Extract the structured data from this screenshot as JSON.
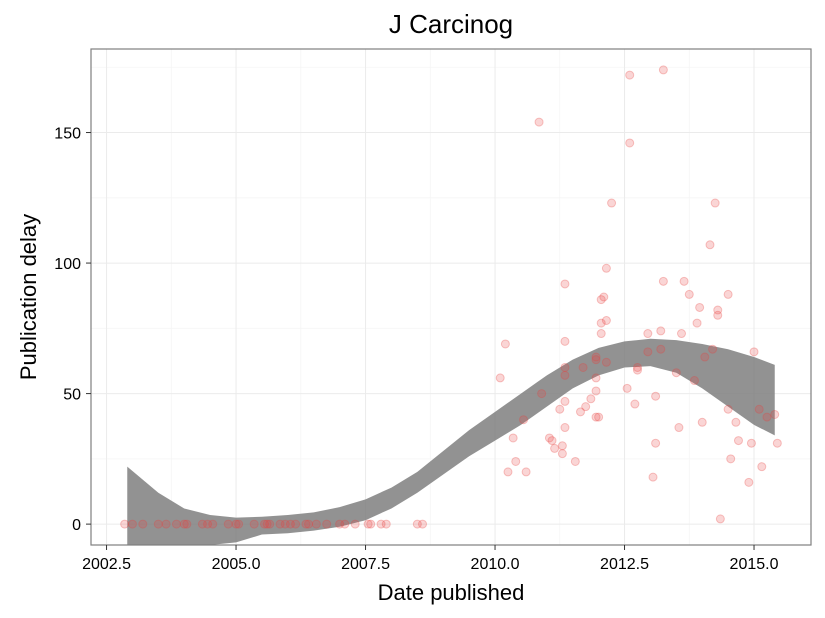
{
  "chart_data": {
    "type": "scatter",
    "title": "J Carcinog",
    "xlabel": "Date published",
    "ylabel": "Publication delay",
    "xlim": [
      2002.2,
      2016.1
    ],
    "ylim": [
      -8,
      182
    ],
    "x_ticks": [
      2002.5,
      2005.0,
      2007.5,
      2010.0,
      2012.5,
      2015.0
    ],
    "x_tick_labels": [
      "2002.5",
      "2005.0",
      "2007.5",
      "2010.0",
      "2012.5",
      "2015.0"
    ],
    "y_ticks": [
      0,
      50,
      100,
      150
    ],
    "y_tick_labels": [
      "0",
      "50",
      "100",
      "150"
    ],
    "grid": true,
    "point_color": "#e8413e",
    "band_color": "#7f7f7f",
    "points": [
      [
        2002.85,
        0
      ],
      [
        2003.0,
        0
      ],
      [
        2003.2,
        0
      ],
      [
        2003.5,
        0
      ],
      [
        2003.65,
        0
      ],
      [
        2003.85,
        0
      ],
      [
        2004.0,
        0
      ],
      [
        2004.05,
        0
      ],
      [
        2004.35,
        0
      ],
      [
        2004.45,
        0
      ],
      [
        2004.55,
        0
      ],
      [
        2004.85,
        0
      ],
      [
        2005.0,
        0
      ],
      [
        2005.05,
        0
      ],
      [
        2005.35,
        0
      ],
      [
        2005.55,
        0
      ],
      [
        2005.6,
        0
      ],
      [
        2005.65,
        0
      ],
      [
        2005.85,
        0
      ],
      [
        2005.95,
        0
      ],
      [
        2006.05,
        0
      ],
      [
        2006.15,
        0
      ],
      [
        2006.35,
        0
      ],
      [
        2006.4,
        0
      ],
      [
        2006.55,
        0
      ],
      [
        2006.75,
        0
      ],
      [
        2007.0,
        0
      ],
      [
        2007.1,
        0
      ],
      [
        2007.3,
        0
      ],
      [
        2007.55,
        0
      ],
      [
        2007.6,
        0
      ],
      [
        2007.8,
        0
      ],
      [
        2007.9,
        0
      ],
      [
        2008.5,
        0
      ],
      [
        2008.6,
        0
      ],
      [
        2010.1,
        56
      ],
      [
        2010.2,
        69
      ],
      [
        2010.25,
        20
      ],
      [
        2010.35,
        33
      ],
      [
        2010.4,
        24
      ],
      [
        2010.55,
        40
      ],
      [
        2010.6,
        20
      ],
      [
        2010.85,
        154
      ],
      [
        2010.9,
        50
      ],
      [
        2011.05,
        33
      ],
      [
        2011.1,
        32
      ],
      [
        2011.15,
        29
      ],
      [
        2011.25,
        44
      ],
      [
        2011.3,
        27
      ],
      [
        2011.3,
        30
      ],
      [
        2011.35,
        37
      ],
      [
        2011.35,
        47
      ],
      [
        2011.35,
        57
      ],
      [
        2011.35,
        60
      ],
      [
        2011.35,
        70
      ],
      [
        2011.35,
        92
      ],
      [
        2011.55,
        24
      ],
      [
        2011.65,
        43
      ],
      [
        2011.7,
        60
      ],
      [
        2011.75,
        45
      ],
      [
        2011.85,
        48
      ],
      [
        2011.95,
        41
      ],
      [
        2011.95,
        51
      ],
      [
        2011.95,
        56
      ],
      [
        2011.95,
        63
      ],
      [
        2011.95,
        64
      ],
      [
        2012.0,
        41
      ],
      [
        2012.05,
        73
      ],
      [
        2012.05,
        77
      ],
      [
        2012.05,
        86
      ],
      [
        2012.1,
        87
      ],
      [
        2012.15,
        62
      ],
      [
        2012.15,
        78
      ],
      [
        2012.15,
        98
      ],
      [
        2012.25,
        123
      ],
      [
        2012.55,
        52
      ],
      [
        2012.6,
        146
      ],
      [
        2012.6,
        172
      ],
      [
        2012.7,
        46
      ],
      [
        2012.75,
        59
      ],
      [
        2012.75,
        60
      ],
      [
        2012.95,
        73
      ],
      [
        2012.95,
        66
      ],
      [
        2013.05,
        18
      ],
      [
        2013.1,
        49
      ],
      [
        2013.1,
        31
      ],
      [
        2013.2,
        67
      ],
      [
        2013.2,
        74
      ],
      [
        2013.25,
        93
      ],
      [
        2013.25,
        174
      ],
      [
        2013.5,
        58
      ],
      [
        2013.55,
        37
      ],
      [
        2013.6,
        73
      ],
      [
        2013.65,
        93
      ],
      [
        2013.75,
        88
      ],
      [
        2013.85,
        55
      ],
      [
        2013.9,
        77
      ],
      [
        2013.95,
        83
      ],
      [
        2014.0,
        39
      ],
      [
        2014.05,
        64
      ],
      [
        2014.15,
        107
      ],
      [
        2014.2,
        67
      ],
      [
        2014.25,
        123
      ],
      [
        2014.3,
        82
      ],
      [
        2014.3,
        80
      ],
      [
        2014.35,
        2
      ],
      [
        2014.5,
        44
      ],
      [
        2014.5,
        88
      ],
      [
        2014.55,
        25
      ],
      [
        2014.65,
        39
      ],
      [
        2014.7,
        32
      ],
      [
        2014.9,
        16
      ],
      [
        2014.95,
        31
      ],
      [
        2015.0,
        66
      ],
      [
        2015.1,
        44
      ],
      [
        2015.15,
        22
      ],
      [
        2015.25,
        41
      ],
      [
        2015.4,
        42
      ],
      [
        2015.45,
        31
      ]
    ],
    "band_upper": [
      [
        2002.9,
        22
      ],
      [
        2003.5,
        12
      ],
      [
        2004.0,
        6
      ],
      [
        2004.5,
        3.5
      ],
      [
        2005.0,
        2.5
      ],
      [
        2005.5,
        2.8
      ],
      [
        2006.0,
        3.5
      ],
      [
        2006.5,
        4.5
      ],
      [
        2007.0,
        6.5
      ],
      [
        2007.5,
        9.5
      ],
      [
        2008.0,
        14
      ],
      [
        2008.5,
        20
      ],
      [
        2009.0,
        28
      ],
      [
        2009.5,
        36
      ],
      [
        2010.0,
        43
      ],
      [
        2010.5,
        50
      ],
      [
        2011.0,
        57
      ],
      [
        2011.5,
        63
      ],
      [
        2012.0,
        67.5
      ],
      [
        2012.5,
        70
      ],
      [
        2013.0,
        71
      ],
      [
        2013.5,
        70.5
      ],
      [
        2014.0,
        69
      ],
      [
        2014.5,
        67
      ],
      [
        2015.0,
        64
      ],
      [
        2015.4,
        61
      ]
    ],
    "band_lower": [
      [
        2002.9,
        -8
      ],
      [
        2003.5,
        -8
      ],
      [
        2004.0,
        -8
      ],
      [
        2004.5,
        -8
      ],
      [
        2005.0,
        -7
      ],
      [
        2005.5,
        -4
      ],
      [
        2006.0,
        -3.5
      ],
      [
        2006.5,
        -2.5
      ],
      [
        2007.0,
        -1
      ],
      [
        2007.5,
        1.5
      ],
      [
        2008.0,
        6
      ],
      [
        2008.5,
        12
      ],
      [
        2009.0,
        19
      ],
      [
        2009.5,
        26
      ],
      [
        2010.0,
        32
      ],
      [
        2010.5,
        38
      ],
      [
        2011.0,
        45
      ],
      [
        2011.5,
        52
      ],
      [
        2012.0,
        57
      ],
      [
        2012.5,
        60
      ],
      [
        2013.0,
        60.5
      ],
      [
        2013.5,
        58
      ],
      [
        2014.0,
        52
      ],
      [
        2014.5,
        45
      ],
      [
        2015.0,
        38
      ],
      [
        2015.4,
        34
      ]
    ]
  }
}
